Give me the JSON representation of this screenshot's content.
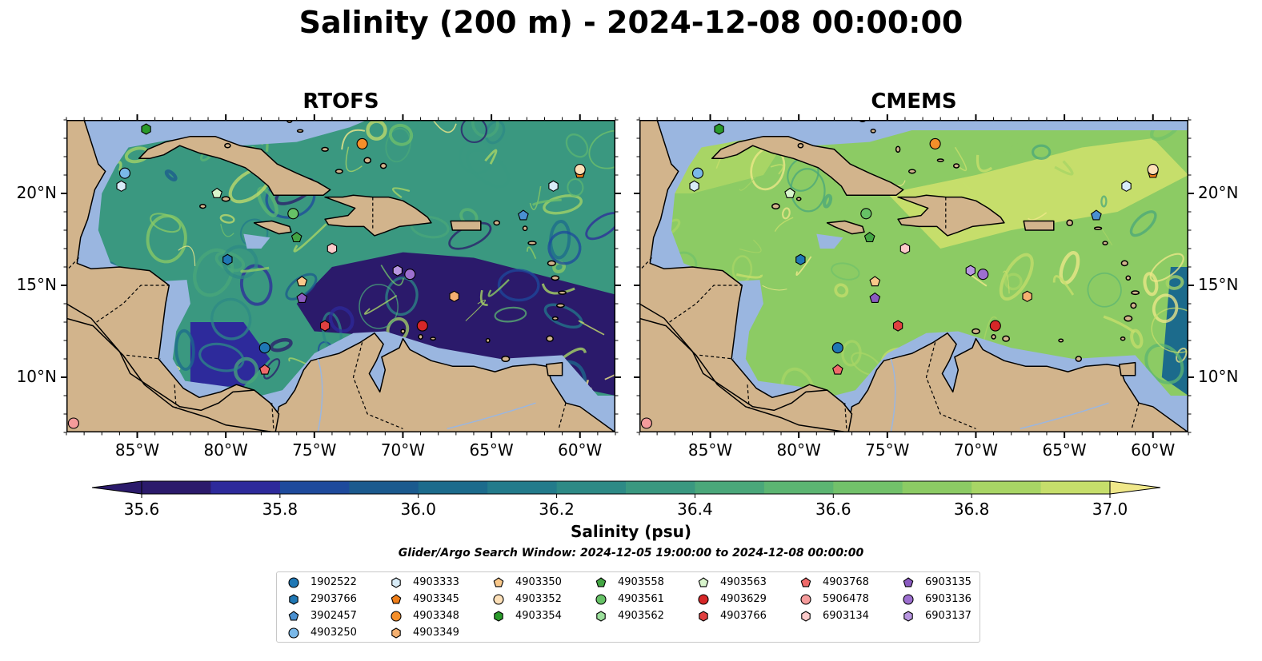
{
  "figure": {
    "title": "Salinity (200 m) - 2024-12-08 00:00:00"
  },
  "panels": [
    {
      "title": "RTOFS",
      "style": "rtofs"
    },
    {
      "title": "CMEMS",
      "style": "cmems"
    }
  ],
  "axes": {
    "lon_labels": [
      "85°W",
      "80°W",
      "75°W",
      "70°W",
      "65°W",
      "60°W"
    ],
    "lon_values": [
      -85,
      -80,
      -75,
      -70,
      -65,
      -60
    ],
    "lat_labels": [
      "10°N",
      "15°N",
      "20°N"
    ],
    "lat_values": [
      10,
      15,
      20
    ],
    "lon_range": [
      -89,
      -58
    ],
    "lat_range": [
      7,
      24
    ]
  },
  "colorbar": {
    "label": "Salinity (psu)",
    "range": [
      35.5,
      37.1
    ],
    "tick_labels": [
      "35.6",
      "35.8",
      "36.0",
      "36.2",
      "36.4",
      "36.6",
      "36.8",
      "37.0"
    ],
    "tick_values": [
      35.6,
      35.8,
      36.0,
      36.2,
      36.4,
      36.6,
      36.8,
      37.0
    ],
    "colors": [
      "#2b1a6b",
      "#2d2a9b",
      "#1e4a9c",
      "#1b5a8e",
      "#1c6b8c",
      "#237b8b",
      "#2d8a86",
      "#3a9880",
      "#4aa77a",
      "#5cb572",
      "#72c16a",
      "#8ccb64",
      "#a8d565",
      "#c6de6b",
      "#f0e88a"
    ],
    "extend": "both"
  },
  "search_window": "Glider/Argo Search Window: 2024-12-05 19:00:00 to 2024-12-08 00:00:00",
  "colors": {
    "land": "#d2b48c",
    "shelf": "#9ab6e0",
    "deep": "#2b1a6b"
  },
  "legend": [
    {
      "id": "1902522",
      "marker": "circle",
      "color": "#1f77b4"
    },
    {
      "id": "2903766",
      "marker": "hexagon",
      "color": "#1f77b4"
    },
    {
      "id": "3902457",
      "marker": "pentagon",
      "color": "#4a90d0"
    },
    {
      "id": "4903250",
      "marker": "circle",
      "color": "#7ab8e8"
    },
    {
      "id": "4903333",
      "marker": "hexagon",
      "color": "#d8ecf8"
    },
    {
      "id": "4903345",
      "marker": "pentagon",
      "color": "#f07f1a"
    },
    {
      "id": "4903348",
      "marker": "circle",
      "color": "#f58f2a"
    },
    {
      "id": "4903349",
      "marker": "hexagon",
      "color": "#f5b070"
    },
    {
      "id": "4903350",
      "marker": "pentagon",
      "color": "#f9c88a"
    },
    {
      "id": "4903352",
      "marker": "circle",
      "color": "#fde0b8"
    },
    {
      "id": "4903354",
      "marker": "hexagon",
      "color": "#2a9a2a"
    },
    {
      "id": "4903558",
      "marker": "pentagon",
      "color": "#43a543"
    },
    {
      "id": "4903561",
      "marker": "circle",
      "color": "#66c266"
    },
    {
      "id": "4903562",
      "marker": "hexagon",
      "color": "#9ce09c"
    },
    {
      "id": "4903563",
      "marker": "pentagon",
      "color": "#d8f5cc"
    },
    {
      "id": "4903629",
      "marker": "circle",
      "color": "#d62728"
    },
    {
      "id": "4903766",
      "marker": "hexagon",
      "color": "#e04040"
    },
    {
      "id": "4903768",
      "marker": "pentagon",
      "color": "#ef6a6a"
    },
    {
      "id": "5906478",
      "marker": "circle",
      "color": "#f59b9b"
    },
    {
      "id": "6903134",
      "marker": "hexagon",
      "color": "#fccaca"
    },
    {
      "id": "6903135",
      "marker": "pentagon",
      "color": "#8a5ac0"
    },
    {
      "id": "6903136",
      "marker": "circle",
      "color": "#9d6fd0"
    },
    {
      "id": "6903137",
      "marker": "hexagon",
      "color": "#b896e0"
    }
  ],
  "markers": [
    {
      "id": "4903354",
      "lon": -84.5,
      "lat": 23.5
    },
    {
      "id": "4903348",
      "lon": -72.3,
      "lat": 22.7
    },
    {
      "id": "4903250",
      "lon": -85.7,
      "lat": 21.1
    },
    {
      "id": "4903333",
      "lon": -85.9,
      "lat": 20.4
    },
    {
      "id": "4903563",
      "lon": -80.5,
      "lat": 20.0
    },
    {
      "id": "4903561",
      "lon": -76.2,
      "lat": 18.9
    },
    {
      "id": "4903558",
      "lon": -76.0,
      "lat": 17.6
    },
    {
      "id": "2903766",
      "lon": -79.9,
      "lat": 16.4
    },
    {
      "id": "6903134",
      "lon": -74.0,
      "lat": 17.0
    },
    {
      "id": "6903137",
      "lon": -70.3,
      "lat": 15.8
    },
    {
      "id": "6903136",
      "lon": -69.6,
      "lat": 15.6
    },
    {
      "id": "4903350",
      "lon": -75.7,
      "lat": 15.2
    },
    {
      "id": "6903135",
      "lon": -75.7,
      "lat": 14.3
    },
    {
      "id": "4903349",
      "lon": -67.1,
      "lat": 14.4
    },
    {
      "id": "4903766",
      "lon": -74.4,
      "lat": 12.8
    },
    {
      "id": "4903629",
      "lon": -68.9,
      "lat": 12.8
    },
    {
      "id": "1902522",
      "lon": -77.8,
      "lat": 11.6
    },
    {
      "id": "4903768",
      "lon": -77.8,
      "lat": 10.4
    },
    {
      "id": "5906478",
      "lon": -88.6,
      "lat": 7.5
    },
    {
      "id": "3902457",
      "lon": -63.2,
      "lat": 18.8
    },
    {
      "id": "4903333",
      "lon": -61.5,
      "lat": 20.4
    },
    {
      "id": "4903345",
      "lon": -60.0,
      "lat": 21.1
    },
    {
      "id": "4903352",
      "lon": -60.0,
      "lat": 21.3
    }
  ]
}
